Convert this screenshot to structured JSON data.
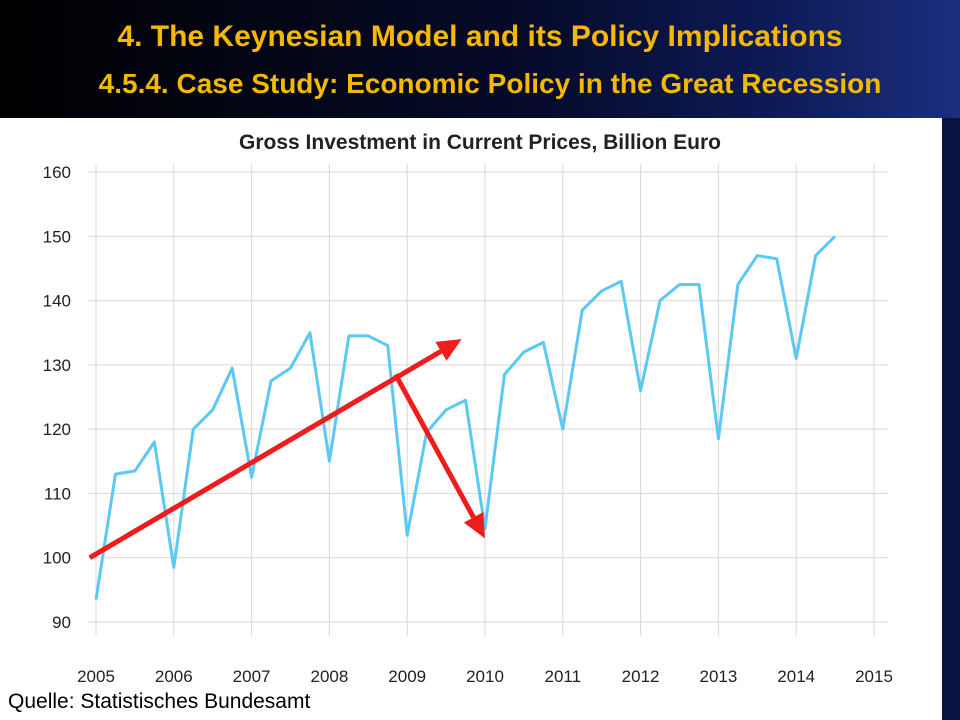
{
  "header": {
    "title": "4. The Keynesian Model and its Policy Implications",
    "subtitle": "4.5.4. Case Study: Economic Policy in the Great Recession"
  },
  "source": "Quelle: Statistisches Bundesamt",
  "colors": {
    "header_text": "#f5b800",
    "line": "#5bc8f5",
    "arrow": "#ee1c1c",
    "grid": "#d8d8d8"
  },
  "chart_data": {
    "type": "line",
    "title": "Gross Investment in Current Prices, Billion Euro",
    "xlabel": "",
    "ylabel": "",
    "xlim": [
      2005,
      2015
    ],
    "ylim": [
      90,
      160
    ],
    "xticks": [
      2005,
      2006,
      2007,
      2008,
      2009,
      2010,
      2011,
      2012,
      2013,
      2014,
      2015
    ],
    "yticks": [
      90,
      100,
      110,
      120,
      130,
      140,
      150,
      160
    ],
    "grid": true,
    "series": [
      {
        "x": [
          2005.0,
          2005.25,
          2005.5,
          2005.75,
          2006.0,
          2006.25,
          2006.5,
          2006.75,
          2007.0,
          2007.25,
          2007.5,
          2007.75,
          2008.0,
          2008.25,
          2008.5,
          2008.75,
          2009.0,
          2009.25,
          2009.5,
          2009.75,
          2010.0,
          2010.25,
          2010.5,
          2010.75,
          2011.0,
          2011.25,
          2011.5,
          2011.75,
          2012.0,
          2012.25,
          2012.5,
          2012.75,
          2013.0,
          2013.25,
          2013.5,
          2013.75,
          2014.0,
          2014.25,
          2014.5
        ],
        "y": [
          93.5,
          113,
          113.5,
          118,
          98.5,
          120,
          123,
          129.5,
          112.5,
          127.5,
          129.5,
          135,
          115,
          134.5,
          134.5,
          133,
          103.5,
          119.5,
          123,
          124.5,
          104.5,
          128.5,
          132,
          133.5,
          120,
          138.5,
          141.5,
          143,
          126,
          140,
          142.5,
          142.5,
          118.5,
          142.5,
          147,
          146.5,
          131,
          147,
          150
        ]
      }
    ],
    "annotations": [
      {
        "type": "arrow",
        "from": [
          2004.92,
          100.0
        ],
        "to": [
          2009.7,
          134.0
        ]
      },
      {
        "type": "arrow",
        "from": [
          2008.85,
          128.5
        ],
        "to": [
          2010.0,
          103.0
        ]
      }
    ]
  }
}
